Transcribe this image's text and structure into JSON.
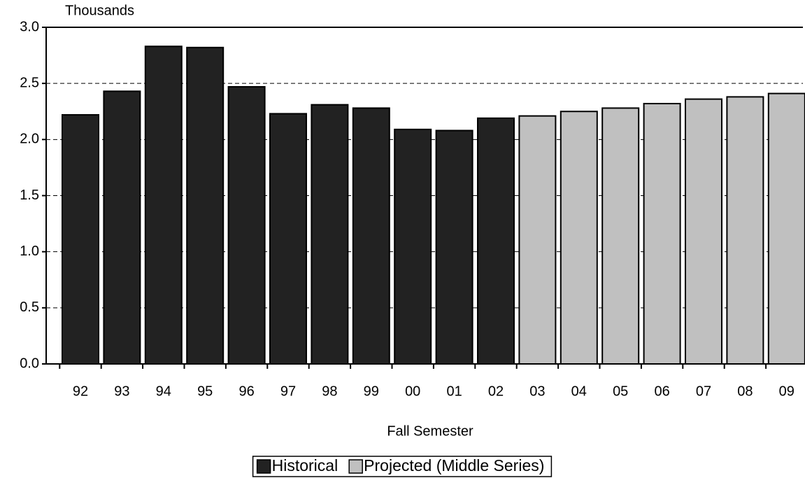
{
  "chart_data": {
    "type": "bar",
    "ylabel": "Thousands",
    "xlabel": "Fall Semester",
    "categories": [
      "92",
      "93",
      "94",
      "95",
      "96",
      "97",
      "98",
      "99",
      "00",
      "01",
      "02",
      "03",
      "04",
      "05",
      "06",
      "07",
      "08",
      "09"
    ],
    "series": [
      {
        "name": "Historical",
        "color": "#222222",
        "values": [
          2.22,
          2.43,
          2.83,
          2.82,
          2.47,
          2.23,
          2.31,
          2.28,
          2.09,
          2.08,
          2.19,
          null,
          null,
          null,
          null,
          null,
          null,
          null
        ]
      },
      {
        "name": "Projected (Middle Series)",
        "color": "#c0c0c0",
        "values": [
          null,
          null,
          null,
          null,
          null,
          null,
          null,
          null,
          null,
          null,
          null,
          2.21,
          2.25,
          2.28,
          2.32,
          2.36,
          2.38,
          2.41
        ]
      }
    ],
    "ylim": [
      0,
      3
    ],
    "yticks": [
      {
        "value": 0,
        "label": "0.0"
      },
      {
        "value": 0.5,
        "label": "0.5"
      },
      {
        "value": 1,
        "label": "1.0"
      },
      {
        "value": 1.5,
        "label": "1.5"
      },
      {
        "value": 2,
        "label": "2.0"
      },
      {
        "value": 2.5,
        "label": "2.5"
      },
      {
        "value": 3,
        "label": "3.0"
      }
    ],
    "grid": true,
    "legend": "bottom"
  }
}
